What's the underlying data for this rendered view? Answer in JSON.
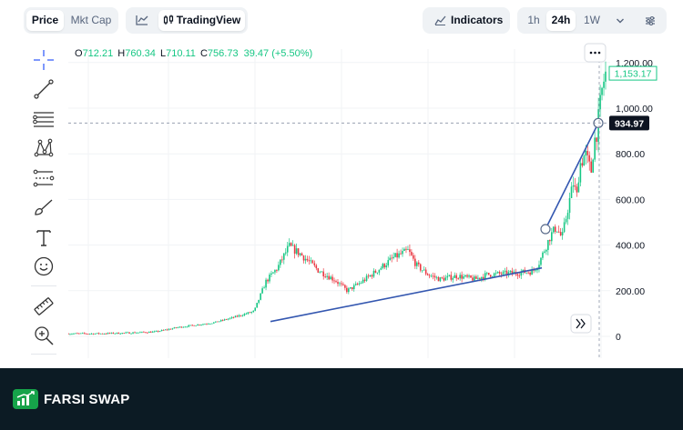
{
  "tabs": {
    "price": "Price",
    "mkt_cap": "Mkt Cap"
  },
  "tradingview_label": "TradingView",
  "indicators_label": "Indicators",
  "timeframes": [
    "1h",
    "24h",
    "1W"
  ],
  "ohlc": {
    "o_key": "O",
    "o": "712.21",
    "h_key": "H",
    "h": "760.34",
    "l_key": "L",
    "l": "710.11",
    "c_key": "C",
    "c": "756.73",
    "change": "39.47 (+5.50%)"
  },
  "price_badges": {
    "last": "1,153.17",
    "crosshair": "934.97"
  },
  "colors": {
    "up": "#16c784",
    "down": "#ea3943",
    "trendline": "#3457b0",
    "footer_bg": "#0c1b24",
    "brand_green": "#16a34a"
  },
  "chart_data": {
    "type": "candlestick",
    "ylabels": [
      "1,200.00",
      "1,000.00",
      "800.00",
      "600.00",
      "400.00",
      "200.00",
      "0"
    ],
    "ylim": [
      0,
      1200
    ],
    "grid": true,
    "trendlines": [
      {
        "from": [
          0.0,
          65
        ],
        "to": [
          0.704,
          300
        ]
      },
      {
        "from": [
          0.704,
          470
        ],
        "to": [
          0.774,
          935
        ]
      }
    ],
    "price_profile": [
      [
        0.0,
        0.06,
        12
      ],
      [
        0.05,
        0.07,
        12
      ],
      [
        0.1,
        0.08,
        15
      ],
      [
        0.15,
        0.09,
        20
      ],
      [
        0.19,
        0.11,
        40
      ],
      [
        0.22,
        0.2,
        50
      ],
      [
        0.25,
        0.3,
        60
      ],
      [
        0.28,
        0.43,
        80
      ],
      [
        0.32,
        0.45,
        110
      ],
      [
        0.34,
        0.5,
        240
      ],
      [
        0.36,
        0.55,
        300
      ],
      [
        0.38,
        0.59,
        395
      ],
      [
        0.4,
        0.63,
        360
      ],
      [
        0.43,
        0.67,
        290
      ],
      [
        0.46,
        0.71,
        245
      ],
      [
        0.48,
        0.75,
        200
      ],
      [
        0.5,
        0.78,
        230
      ],
      [
        0.53,
        0.81,
        285
      ],
      [
        0.56,
        0.85,
        345
      ],
      [
        0.585,
        0.88,
        375
      ],
      [
        0.6,
        0.9,
        310
      ],
      [
        0.62,
        0.93,
        270
      ],
      [
        0.64,
        0.95,
        250
      ],
      [
        0.67,
        0.98,
        265
      ],
      [
        0.7,
        1.01,
        250
      ],
      [
        0.72,
        1.03,
        270
      ],
      [
        0.75,
        1.06,
        275
      ],
      [
        0.78,
        1.09,
        280
      ],
      [
        0.8,
        1.11,
        285
      ],
      [
        0.81,
        1.13,
        320
      ],
      [
        0.82,
        1.15,
        380
      ],
      [
        0.83,
        1.16,
        440
      ],
      [
        0.84,
        1.18,
        480
      ],
      [
        0.85,
        1.2,
        430
      ],
      [
        0.86,
        1.22,
        560
      ],
      [
        0.87,
        1.24,
        680
      ],
      [
        0.875,
        1.25,
        600
      ],
      [
        0.88,
        1.27,
        750
      ],
      [
        0.89,
        1.28,
        800
      ],
      [
        0.9,
        1.29,
        720
      ],
      [
        0.905,
        1.3,
        850
      ],
      [
        0.91,
        1.31,
        900
      ],
      [
        0.915,
        1.32,
        1000
      ],
      [
        0.92,
        1.34,
        1100
      ],
      [
        0.925,
        1.35,
        1150
      ]
    ]
  },
  "logo": {
    "text": "FARSI SWAP"
  }
}
